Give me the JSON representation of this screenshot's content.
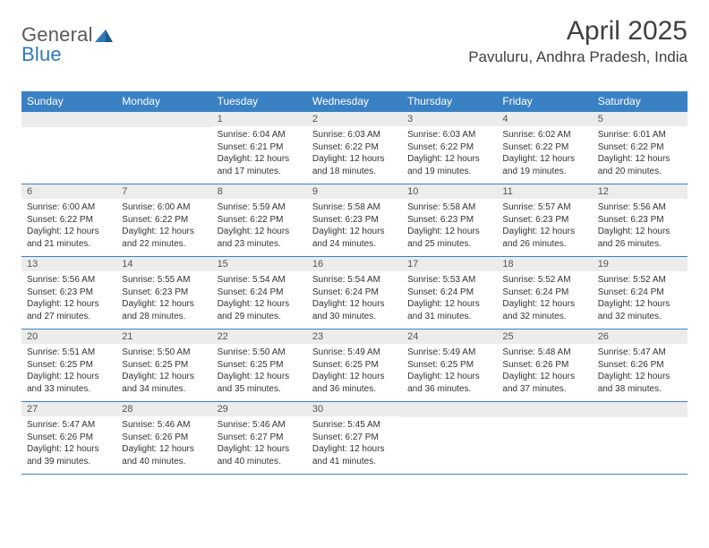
{
  "logo": {
    "text1": "General",
    "text2": "Blue",
    "color1": "#5a5a5a",
    "color2": "#2f78b7"
  },
  "title": "April 2025",
  "location": "Pavuluru, Andhra Pradesh, India",
  "colors": {
    "header_bg": "#3a81c4",
    "header_text": "#ffffff",
    "daynum_bg": "#ececec",
    "daynum_text": "#555555",
    "body_text": "#333333",
    "row_border": "#3a81c4"
  },
  "weekdays": [
    "Sunday",
    "Monday",
    "Tuesday",
    "Wednesday",
    "Thursday",
    "Friday",
    "Saturday"
  ],
  "weeks": [
    [
      {
        "n": "",
        "sunrise": "",
        "sunset": "",
        "daylight": ""
      },
      {
        "n": "",
        "sunrise": "",
        "sunset": "",
        "daylight": ""
      },
      {
        "n": "1",
        "sunrise": "Sunrise: 6:04 AM",
        "sunset": "Sunset: 6:21 PM",
        "daylight": "Daylight: 12 hours and 17 minutes."
      },
      {
        "n": "2",
        "sunrise": "Sunrise: 6:03 AM",
        "sunset": "Sunset: 6:22 PM",
        "daylight": "Daylight: 12 hours and 18 minutes."
      },
      {
        "n": "3",
        "sunrise": "Sunrise: 6:03 AM",
        "sunset": "Sunset: 6:22 PM",
        "daylight": "Daylight: 12 hours and 19 minutes."
      },
      {
        "n": "4",
        "sunrise": "Sunrise: 6:02 AM",
        "sunset": "Sunset: 6:22 PM",
        "daylight": "Daylight: 12 hours and 19 minutes."
      },
      {
        "n": "5",
        "sunrise": "Sunrise: 6:01 AM",
        "sunset": "Sunset: 6:22 PM",
        "daylight": "Daylight: 12 hours and 20 minutes."
      }
    ],
    [
      {
        "n": "6",
        "sunrise": "Sunrise: 6:00 AM",
        "sunset": "Sunset: 6:22 PM",
        "daylight": "Daylight: 12 hours and 21 minutes."
      },
      {
        "n": "7",
        "sunrise": "Sunrise: 6:00 AM",
        "sunset": "Sunset: 6:22 PM",
        "daylight": "Daylight: 12 hours and 22 minutes."
      },
      {
        "n": "8",
        "sunrise": "Sunrise: 5:59 AM",
        "sunset": "Sunset: 6:22 PM",
        "daylight": "Daylight: 12 hours and 23 minutes."
      },
      {
        "n": "9",
        "sunrise": "Sunrise: 5:58 AM",
        "sunset": "Sunset: 6:23 PM",
        "daylight": "Daylight: 12 hours and 24 minutes."
      },
      {
        "n": "10",
        "sunrise": "Sunrise: 5:58 AM",
        "sunset": "Sunset: 6:23 PM",
        "daylight": "Daylight: 12 hours and 25 minutes."
      },
      {
        "n": "11",
        "sunrise": "Sunrise: 5:57 AM",
        "sunset": "Sunset: 6:23 PM",
        "daylight": "Daylight: 12 hours and 26 minutes."
      },
      {
        "n": "12",
        "sunrise": "Sunrise: 5:56 AM",
        "sunset": "Sunset: 6:23 PM",
        "daylight": "Daylight: 12 hours and 26 minutes."
      }
    ],
    [
      {
        "n": "13",
        "sunrise": "Sunrise: 5:56 AM",
        "sunset": "Sunset: 6:23 PM",
        "daylight": "Daylight: 12 hours and 27 minutes."
      },
      {
        "n": "14",
        "sunrise": "Sunrise: 5:55 AM",
        "sunset": "Sunset: 6:23 PM",
        "daylight": "Daylight: 12 hours and 28 minutes."
      },
      {
        "n": "15",
        "sunrise": "Sunrise: 5:54 AM",
        "sunset": "Sunset: 6:24 PM",
        "daylight": "Daylight: 12 hours and 29 minutes."
      },
      {
        "n": "16",
        "sunrise": "Sunrise: 5:54 AM",
        "sunset": "Sunset: 6:24 PM",
        "daylight": "Daylight: 12 hours and 30 minutes."
      },
      {
        "n": "17",
        "sunrise": "Sunrise: 5:53 AM",
        "sunset": "Sunset: 6:24 PM",
        "daylight": "Daylight: 12 hours and 31 minutes."
      },
      {
        "n": "18",
        "sunrise": "Sunrise: 5:52 AM",
        "sunset": "Sunset: 6:24 PM",
        "daylight": "Daylight: 12 hours and 32 minutes."
      },
      {
        "n": "19",
        "sunrise": "Sunrise: 5:52 AM",
        "sunset": "Sunset: 6:24 PM",
        "daylight": "Daylight: 12 hours and 32 minutes."
      }
    ],
    [
      {
        "n": "20",
        "sunrise": "Sunrise: 5:51 AM",
        "sunset": "Sunset: 6:25 PM",
        "daylight": "Daylight: 12 hours and 33 minutes."
      },
      {
        "n": "21",
        "sunrise": "Sunrise: 5:50 AM",
        "sunset": "Sunset: 6:25 PM",
        "daylight": "Daylight: 12 hours and 34 minutes."
      },
      {
        "n": "22",
        "sunrise": "Sunrise: 5:50 AM",
        "sunset": "Sunset: 6:25 PM",
        "daylight": "Daylight: 12 hours and 35 minutes."
      },
      {
        "n": "23",
        "sunrise": "Sunrise: 5:49 AM",
        "sunset": "Sunset: 6:25 PM",
        "daylight": "Daylight: 12 hours and 36 minutes."
      },
      {
        "n": "24",
        "sunrise": "Sunrise: 5:49 AM",
        "sunset": "Sunset: 6:25 PM",
        "daylight": "Daylight: 12 hours and 36 minutes."
      },
      {
        "n": "25",
        "sunrise": "Sunrise: 5:48 AM",
        "sunset": "Sunset: 6:26 PM",
        "daylight": "Daylight: 12 hours and 37 minutes."
      },
      {
        "n": "26",
        "sunrise": "Sunrise: 5:47 AM",
        "sunset": "Sunset: 6:26 PM",
        "daylight": "Daylight: 12 hours and 38 minutes."
      }
    ],
    [
      {
        "n": "27",
        "sunrise": "Sunrise: 5:47 AM",
        "sunset": "Sunset: 6:26 PM",
        "daylight": "Daylight: 12 hours and 39 minutes."
      },
      {
        "n": "28",
        "sunrise": "Sunrise: 5:46 AM",
        "sunset": "Sunset: 6:26 PM",
        "daylight": "Daylight: 12 hours and 40 minutes."
      },
      {
        "n": "29",
        "sunrise": "Sunrise: 5:46 AM",
        "sunset": "Sunset: 6:27 PM",
        "daylight": "Daylight: 12 hours and 40 minutes."
      },
      {
        "n": "30",
        "sunrise": "Sunrise: 5:45 AM",
        "sunset": "Sunset: 6:27 PM",
        "daylight": "Daylight: 12 hours and 41 minutes."
      },
      {
        "n": "",
        "sunrise": "",
        "sunset": "",
        "daylight": ""
      },
      {
        "n": "",
        "sunrise": "",
        "sunset": "",
        "daylight": ""
      },
      {
        "n": "",
        "sunrise": "",
        "sunset": "",
        "daylight": ""
      }
    ]
  ]
}
